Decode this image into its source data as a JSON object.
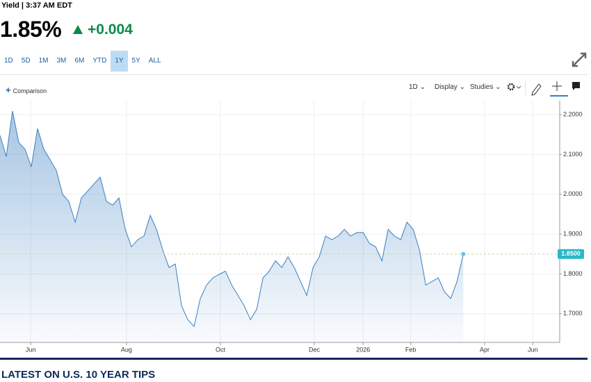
{
  "header": {
    "meta": "Yield | 3:37 AM EDT",
    "price": "1.85%",
    "change": "+0.004"
  },
  "range_buttons": [
    "1D",
    "5D",
    "1M",
    "3M",
    "6M",
    "YTD",
    "1Y",
    "5Y",
    "ALL"
  ],
  "selected_range_index": 6,
  "toolbar": {
    "comparison": "Comparison",
    "interval": "1D",
    "display": "Display",
    "studies": "Studies"
  },
  "chart_data": {
    "type": "area",
    "color": "#3a7fc1",
    "x": [
      0,
      1,
      2,
      3,
      4,
      5,
      6,
      7,
      8,
      9,
      10,
      11,
      12,
      13,
      14,
      15,
      16,
      17,
      18,
      19,
      20,
      21,
      22,
      23,
      24,
      25,
      26,
      27,
      28,
      29,
      30,
      31,
      32,
      33,
      34,
      35,
      36,
      37,
      38,
      39,
      40,
      41,
      42,
      43,
      44,
      45,
      46,
      47,
      48,
      49,
      50,
      51,
      52,
      53,
      54,
      55,
      56,
      57,
      58,
      59,
      60,
      61,
      62,
      63,
      64,
      65,
      66,
      67,
      68,
      69,
      70,
      71,
      72,
      73,
      74
    ],
    "values": [
      2.148,
      2.095,
      2.209,
      2.13,
      2.113,
      2.069,
      2.165,
      2.113,
      2.087,
      2.06,
      2.0,
      1.982,
      1.93,
      1.991,
      2.008,
      2.026,
      2.043,
      1.982,
      1.973,
      1.991,
      1.912,
      1.868,
      1.886,
      1.895,
      1.947,
      1.912,
      1.86,
      1.816,
      1.825,
      1.72,
      1.685,
      1.668,
      1.738,
      1.772,
      1.79,
      1.799,
      1.807,
      1.772,
      1.746,
      1.72,
      1.685,
      1.711,
      1.79,
      1.807,
      1.833,
      1.816,
      1.843,
      1.816,
      1.781,
      1.746,
      1.816,
      1.843,
      1.895,
      1.886,
      1.895,
      1.912,
      1.895,
      1.904,
      1.904,
      1.877,
      1.868,
      1.833,
      1.912,
      1.895,
      1.886,
      1.93,
      1.912,
      1.86,
      1.772,
      1.781,
      1.79,
      1.755,
      1.738,
      1.781,
      1.85
    ],
    "xlim": [
      0,
      89.4
    ],
    "xticks": [
      {
        "value": 4.9,
        "label": "Jun"
      },
      {
        "value": 20.2,
        "label": "Aug"
      },
      {
        "value": 35.2,
        "label": "Oct"
      },
      {
        "value": 50.2,
        "label": "Dec"
      },
      {
        "value": 58.0,
        "label": "2026"
      },
      {
        "value": 65.6,
        "label": "Feb"
      },
      {
        "value": 77.4,
        "label": "Apr"
      },
      {
        "value": 85.1,
        "label": "Jun"
      }
    ],
    "ylim": [
      1.628,
      2.235
    ],
    "yticks": [
      {
        "value": 1.7,
        "label": "1.7000"
      },
      {
        "value": 1.8,
        "label": "1.8000"
      },
      {
        "value": 1.9,
        "label": "1.9000"
      },
      {
        "value": 2.0,
        "label": "2.0000"
      },
      {
        "value": 2.1,
        "label": "2.1000"
      },
      {
        "value": 2.2,
        "label": "2.2000"
      }
    ],
    "last_value": {
      "value": 1.85,
      "label": "1.8500"
    },
    "grid": true
  },
  "section_title": "LATEST ON U.S. 10 YEAR TIPS"
}
